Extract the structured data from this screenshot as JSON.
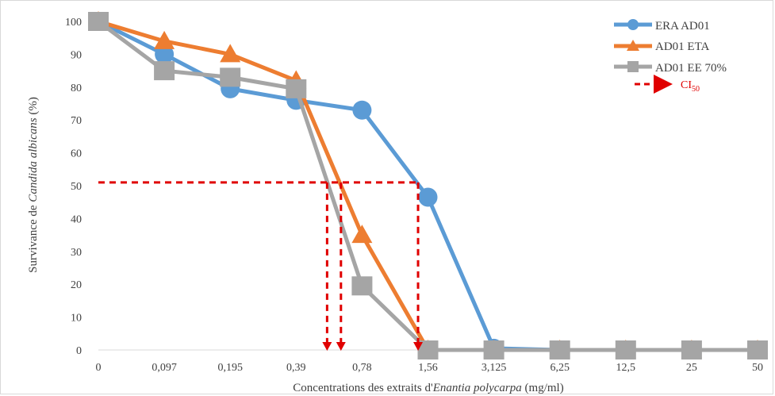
{
  "chart_data": {
    "type": "line",
    "categories": [
      "0",
      "0,097",
      "0,195",
      "0,39",
      "0,78",
      "1,56",
      "3,125",
      "6,25",
      "12,5",
      "25",
      "50"
    ],
    "ylim": [
      0,
      100
    ],
    "yticks": [
      0,
      10,
      20,
      30,
      40,
      50,
      60,
      70,
      80,
      90,
      100
    ],
    "grid": false,
    "legend_position": "top-right",
    "xlabel": {
      "prefix": "Concentrations des extraits d'",
      "italic": "Enantia polycarpa",
      "suffix": " (mg/ml)"
    },
    "ylabel": {
      "prefix": "Survivance de ",
      "italic": "Candida albicans",
      "suffix": " (%)"
    },
    "series": [
      {
        "name": "ERA AD01",
        "marker": "circle",
        "color": "#5b9bd5",
        "values": [
          100,
          90,
          79.5,
          76,
          73,
          46.5,
          0.5,
          0,
          0,
          0,
          0
        ]
      },
      {
        "name": "AD01 ETA",
        "marker": "triangle",
        "color": "#ed7d31",
        "values": [
          100,
          94,
          90,
          82,
          35,
          0,
          0,
          0,
          0,
          0,
          0
        ]
      },
      {
        "name": "AD01 EE 70%",
        "marker": "square",
        "color": "#a5a5a5",
        "values": [
          100,
          85,
          83,
          79.5,
          19.5,
          0,
          0,
          0,
          0,
          0,
          0
        ]
      }
    ],
    "ci50": {
      "label": "CI",
      "label_sub": "50",
      "color": "#e00000",
      "y": 51,
      "x_positions": [
        3.47,
        3.68,
        4.85
      ]
    }
  }
}
